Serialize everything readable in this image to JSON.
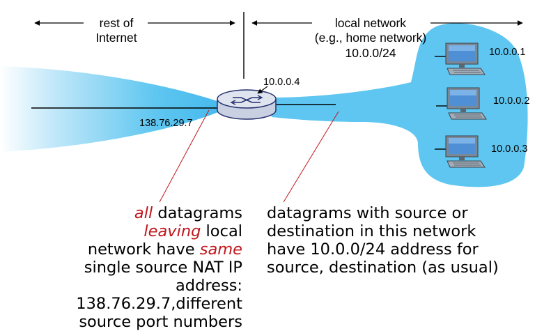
{
  "colors": {
    "network": "#5ec6f0",
    "network_dark": "#2a9fd6",
    "router_body": "#dfe4ef",
    "router_stroke": "#24306e",
    "annotation_line": "#c0161c",
    "emphasis": "#c0161c"
  },
  "labels": {
    "rest_of_internet_line1": "rest of",
    "rest_of_internet_line2": "Internet",
    "local_network_line1": "local network",
    "local_network_line2": "(e.g., home network)",
    "local_network_line3": "10.0.0/24",
    "router_local_ip": "10.0.0.4",
    "router_public_ip": "138.76.29.7"
  },
  "hosts": [
    {
      "ip": "10.0.0.1"
    },
    {
      "ip": "10.0.0.2"
    },
    {
      "ip": "10.0.0.3"
    }
  ],
  "icons": {
    "router": "router-icon",
    "host": "desktop-computer-icon"
  },
  "notes": {
    "left": {
      "w1": "all",
      "w2": " datagrams ",
      "w3": "leaving",
      "w4": " local network have ",
      "w5": "same",
      "w6": " single source NAT IP address: 138.76.29.7,different source port numbers"
    },
    "right": "datagrams with source or destination in this network have 10.0.0/24 address for source, destination (as usual)"
  }
}
